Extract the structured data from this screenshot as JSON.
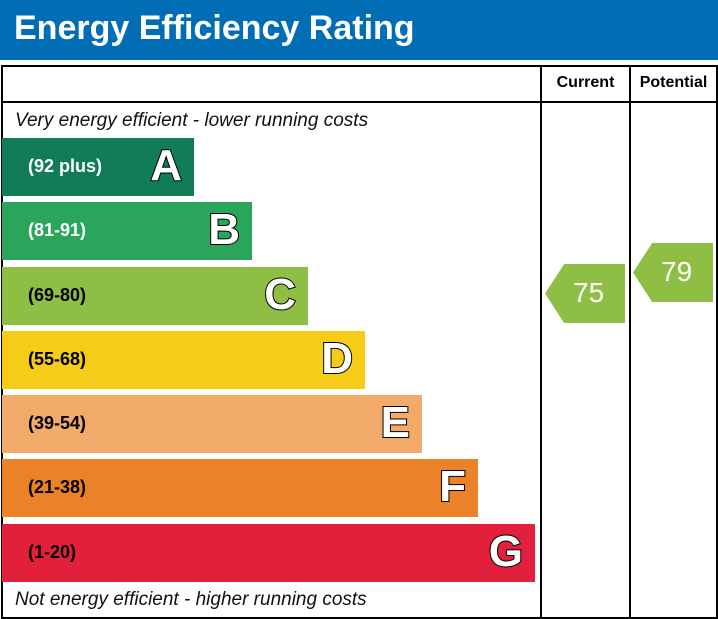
{
  "title": "Energy Efficiency Rating",
  "columns": {
    "current": "Current",
    "potential": "Potential"
  },
  "top_note": "Very energy efficient - lower running costs",
  "bottom_note": "Not energy efficient - higher running costs",
  "chart_data": {
    "type": "bar",
    "bands": [
      {
        "letter": "A",
        "range": "(92 plus)",
        "color": "#117c55",
        "text_color": "#ffffff"
      },
      {
        "letter": "B",
        "range": "(81-91)",
        "color": "#2ba55b",
        "text_color": "#ffffff"
      },
      {
        "letter": "C",
        "range": "(69-80)",
        "color": "#8fbe44",
        "text_color": "#000000"
      },
      {
        "letter": "D",
        "range": "(55-68)",
        "color": "#f6cc19",
        "text_color": "#000000"
      },
      {
        "letter": "E",
        "range": "(39-54)",
        "color": "#f2aa6b",
        "text_color": "#000000"
      },
      {
        "letter": "F",
        "range": "(21-38)",
        "color": "#ec8227",
        "text_color": "#000000"
      },
      {
        "letter": "G",
        "range": "(1-20)",
        "color": "#e2203c",
        "text_color": "#000000"
      }
    ],
    "current": {
      "value": "75",
      "band": "C",
      "color": "#8fbe44"
    },
    "potential": {
      "value": "79",
      "band": "C",
      "color": "#8fbe44"
    }
  }
}
